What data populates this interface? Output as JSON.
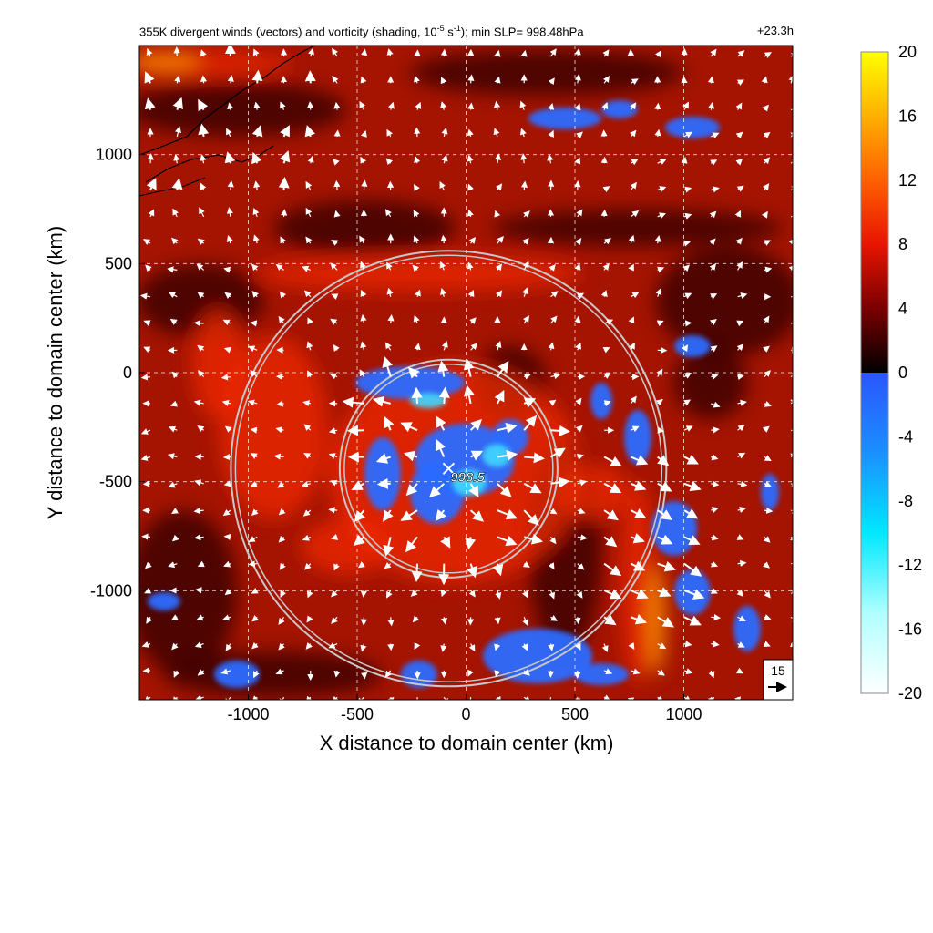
{
  "chart_data": {
    "type": "heatmap",
    "title_parts": {
      "prefix": "355K divergent winds (vectors) and vorticity (shading, 10",
      "exp1": "-5",
      "middle": " s",
      "exp2": "-1",
      "suffix": "); min SLP= 998.48hPa"
    },
    "time_label": "+23.3h",
    "xlabel": "X distance to domain center (km)",
    "ylabel": "Y distance to domain center (km)",
    "xlim": [
      -1500,
      1500
    ],
    "ylim": [
      -1500,
      1500
    ],
    "xticks": [
      -1000,
      -500,
      0,
      500,
      1000
    ],
    "yticks": [
      -1000,
      -500,
      0,
      500,
      1000
    ],
    "grid": true,
    "colorbar": {
      "ticks": [
        "20",
        "16",
        "12",
        "8",
        "4",
        "0",
        "-4",
        "-8",
        "-12",
        "-16",
        "-20"
      ],
      "range": [
        -20,
        20
      ],
      "positive_colors": [
        "#000000",
        "#7a0000",
        "#e81400",
        "#ff6000",
        "#ffb000",
        "#ffff00"
      ],
      "negative_colors": [
        "#2a55ff",
        "#1a90ff",
        "#00e8ff",
        "#b0ffff",
        "#ffffff"
      ]
    },
    "storm_center": {
      "x": -80,
      "y": -440,
      "label": "998.5"
    },
    "range_rings_km": [
      500,
      1000
    ],
    "reference_vector": {
      "label": "15"
    },
    "notes": "Negative vorticity clusters near storm core and east band; strong positive band to the northwest."
  }
}
